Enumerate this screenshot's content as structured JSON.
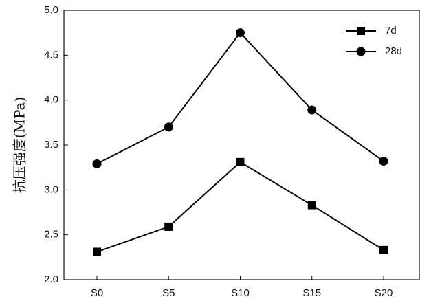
{
  "chart_data": {
    "type": "line",
    "y_label": "抗压强度(MPa)",
    "categories": [
      "S0",
      "S5",
      "S10",
      "S15",
      "S20"
    ],
    "series": [
      {
        "name": "7d",
        "color": "#000000",
        "marker": "square",
        "values": [
          2.31,
          2.59,
          3.31,
          2.83,
          2.33
        ]
      },
      {
        "name": "28d",
        "color": "#000000",
        "marker": "circle",
        "values": [
          3.29,
          3.7,
          4.75,
          3.89,
          3.32
        ]
      }
    ],
    "ylim": [
      2.0,
      5.0
    ],
    "yticks": [
      {
        "value": 2.0,
        "label": "2.0"
      },
      2.5,
      {
        "value": 3.0,
        "label": "3.0"
      },
      3.5,
      {
        "value": 4.0,
        "label": "4.0"
      },
      4.5,
      {
        "value": 5.0,
        "label": "5.0"
      }
    ],
    "grid": false,
    "legend": "upper right"
  }
}
